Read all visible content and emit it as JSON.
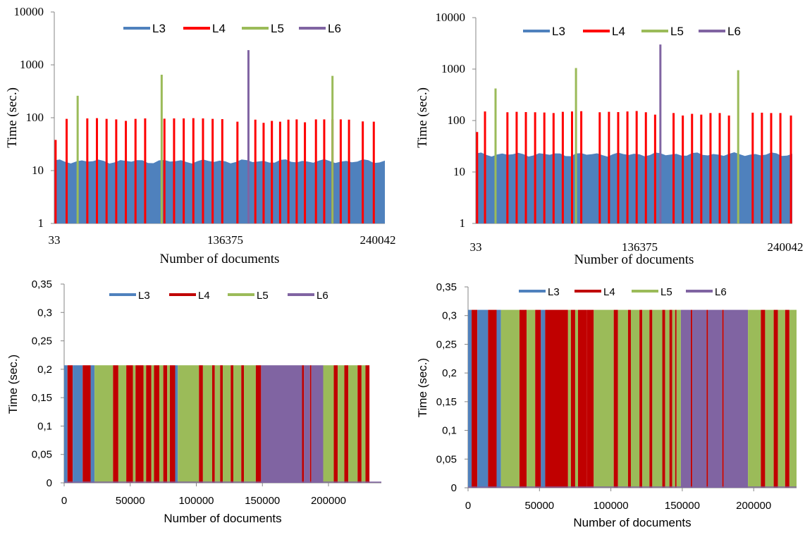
{
  "colors": {
    "L3": "#4f81bd",
    "L4_top": "#ff0000",
    "L4_bottom": "#c00000",
    "L5": "#9bbb59",
    "L6": "#8064a2"
  },
  "chart_data": [
    {
      "type": "bar",
      "panel": "top-left",
      "ylabel": "Time (sec.)",
      "xlabel": "Number of documents",
      "yscale": "log",
      "ylim": [
        1,
        10000
      ],
      "yticks": [
        "1",
        "10",
        "100",
        "1000",
        "10000"
      ],
      "xticks": [
        "33",
        "136375",
        "240042"
      ],
      "legend": [
        "L3",
        "L4",
        "L5",
        "L6"
      ],
      "legend_position": "top",
      "x_range": [
        33,
        240042
      ],
      "series": [
        {
          "name": "L3",
          "baseline": 15,
          "note_values": [
            15,
            14,
            15,
            16,
            15,
            17,
            15,
            14,
            15,
            16,
            15,
            14,
            13,
            15,
            16,
            15,
            14,
            15,
            14,
            13
          ]
        },
        {
          "name": "L4",
          "x": [
            1000,
            9000,
            24000,
            31000,
            38000,
            45000,
            52000,
            59000,
            66000,
            80000,
            87000,
            94000,
            101000,
            108000,
            115000,
            122000,
            133000,
            146000,
            152000,
            158000,
            164000,
            170000,
            176000,
            182000,
            190000,
            196000,
            202000,
            208000,
            214000,
            224000,
            232000
          ],
          "values": [
            38,
            95,
            97,
            98,
            95,
            93,
            87,
            95,
            97,
            96,
            97,
            97,
            98,
            97,
            95,
            94,
            84,
            92,
            80,
            87,
            84,
            92,
            93,
            82,
            93,
            93,
            93,
            93,
            92,
            85,
            84
          ]
        },
        {
          "name": "L5",
          "x": [
            17000,
            78000,
            202000
          ],
          "values": [
            260,
            650,
            620
          ]
        },
        {
          "name": "L6",
          "x": [
            141000
          ],
          "values": [
            1900
          ]
        }
      ]
    },
    {
      "type": "bar",
      "panel": "top-right",
      "ylabel": "Time (sec.)",
      "xlabel": "Number of documents",
      "yscale": "log",
      "ylim": [
        1,
        10000
      ],
      "yticks": [
        "1",
        "10",
        "100",
        "1000",
        "10000"
      ],
      "xticks": [
        "33",
        "136375",
        "240042"
      ],
      "legend": [
        "L3",
        "L4",
        "L5",
        "L6"
      ],
      "legend_position": "top",
      "x_range": [
        33,
        240042
      ],
      "series": [
        {
          "name": "L3",
          "baseline": 22
        },
        {
          "name": "L4",
          "x": [
            1000,
            7000,
            24000,
            31000,
            38000,
            45000,
            52000,
            59000,
            66000,
            73000,
            80000,
            94000,
            101000,
            108000,
            115000,
            122000,
            129000,
            136000,
            150000,
            157000,
            164000,
            171000,
            178000,
            185000,
            192000,
            210000,
            217000,
            224000,
            231000,
            239000
          ],
          "values": [
            60,
            150,
            145,
            148,
            146,
            145,
            143,
            140,
            148,
            150,
            152,
            145,
            148,
            146,
            150,
            153,
            145,
            130,
            140,
            125,
            135,
            130,
            140,
            140,
            125,
            142,
            142,
            140,
            140,
            125
          ]
        },
        {
          "name": "L5",
          "x": [
            15000,
            76000,
            199000
          ],
          "values": [
            420,
            1050,
            950
          ]
        },
        {
          "name": "L6",
          "x": [
            140000
          ],
          "values": [
            3000
          ]
        }
      ]
    },
    {
      "type": "area",
      "panel": "bottom-left",
      "ylabel": "Time (sec.)",
      "xlabel": "Number of documents",
      "ylim": [
        0,
        0.35
      ],
      "yticks": [
        "0",
        "0,05",
        "0,1",
        "0,15",
        "0,2",
        "0,25",
        "0,3",
        "0,35"
      ],
      "xticks": [
        "0",
        "50000",
        "100000",
        "150000",
        "200000"
      ],
      "xlim": [
        0,
        240000
      ],
      "legend": [
        "L3",
        "L4",
        "L5",
        "L6"
      ],
      "legend_position": "top",
      "level": 0.207,
      "segments": [
        [
          0,
          2500,
          "L3"
        ],
        [
          2500,
          6500,
          "L4"
        ],
        [
          6500,
          14000,
          "L3"
        ],
        [
          14000,
          20000,
          "L4"
        ],
        [
          20000,
          23000,
          "L3"
        ],
        [
          23000,
          37000,
          "L5"
        ],
        [
          37000,
          41000,
          "L4"
        ],
        [
          41000,
          47000,
          "L5"
        ],
        [
          47000,
          52000,
          "L4"
        ],
        [
          52000,
          54000,
          "L5"
        ],
        [
          54000,
          60000,
          "L4"
        ],
        [
          60000,
          62000,
          "L5"
        ],
        [
          62000,
          66000,
          "L4"
        ],
        [
          66000,
          68000,
          "L5"
        ],
        [
          68000,
          72000,
          "L4"
        ],
        [
          72000,
          75000,
          "L5"
        ],
        [
          75000,
          78000,
          "L4"
        ],
        [
          78000,
          80000,
          "L5"
        ],
        [
          80000,
          84000,
          "L4"
        ],
        [
          84000,
          86000,
          "L3"
        ],
        [
          86000,
          102000,
          "L5"
        ],
        [
          102000,
          105000,
          "L4"
        ],
        [
          105000,
          112000,
          "L5"
        ],
        [
          112000,
          114000,
          "L4"
        ],
        [
          114000,
          118000,
          "L5"
        ],
        [
          118000,
          120000,
          "L4"
        ],
        [
          120000,
          126000,
          "L5"
        ],
        [
          126000,
          128000,
          "L4"
        ],
        [
          128000,
          134000,
          "L5"
        ],
        [
          134000,
          136000,
          "L4"
        ],
        [
          136000,
          145000,
          "L5"
        ],
        [
          145000,
          149000,
          "L4"
        ],
        [
          149000,
          180000,
          "L6"
        ],
        [
          180000,
          181500,
          "L4"
        ],
        [
          181500,
          186000,
          "L6"
        ],
        [
          186000,
          187000,
          "L4"
        ],
        [
          187000,
          196000,
          "L6"
        ],
        [
          196000,
          204000,
          "L5"
        ],
        [
          204000,
          207000,
          "L4"
        ],
        [
          207000,
          212000,
          "L5"
        ],
        [
          212000,
          215000,
          "L4"
        ],
        [
          215000,
          222000,
          "L5"
        ],
        [
          222000,
          225000,
          "L4"
        ],
        [
          225000,
          228000,
          "L5"
        ],
        [
          228000,
          231000,
          "L4"
        ]
      ]
    },
    {
      "type": "area",
      "panel": "bottom-right",
      "ylabel": "Time (sec.)",
      "xlabel": "Number of documents",
      "ylim": [
        0,
        0.35
      ],
      "yticks": [
        "0",
        "0,05",
        "0,1",
        "0,15",
        "0,2",
        "0,25",
        "0,3",
        "0,35"
      ],
      "xticks": [
        "0",
        "50000",
        "100000",
        "150000",
        "200000"
      ],
      "xlim": [
        0,
        230000
      ],
      "legend": [
        "L3",
        "L4",
        "L5",
        "L6"
      ],
      "legend_position": "top",
      "level": 0.31,
      "segments": [
        [
          0,
          2500,
          "L3"
        ],
        [
          2500,
          6500,
          "L4"
        ],
        [
          6500,
          14000,
          "L3"
        ],
        [
          14000,
          20000,
          "L4"
        ],
        [
          20000,
          23000,
          "L3"
        ],
        [
          23000,
          36000,
          "L5"
        ],
        [
          36000,
          41000,
          "L4"
        ],
        [
          41000,
          47000,
          "L5"
        ],
        [
          47000,
          51000,
          "L4"
        ],
        [
          51000,
          54000,
          "L3"
        ],
        [
          54000,
          70000,
          "L4"
        ],
        [
          70000,
          72000,
          "L5"
        ],
        [
          72000,
          75000,
          "L4"
        ],
        [
          75000,
          77000,
          "L5"
        ],
        [
          77000,
          83000,
          "L4"
        ],
        [
          83000,
          88000,
          "L4"
        ],
        [
          88000,
          102000,
          "L5"
        ],
        [
          102000,
          105000,
          "L4"
        ],
        [
          105000,
          112000,
          "L5"
        ],
        [
          112000,
          114000,
          "L4"
        ],
        [
          114000,
          120000,
          "L5"
        ],
        [
          120000,
          122000,
          "L4"
        ],
        [
          122000,
          127000,
          "L5"
        ],
        [
          127000,
          129000,
          "L4"
        ],
        [
          129000,
          136000,
          "L5"
        ],
        [
          136000,
          138000,
          "L4"
        ],
        [
          138000,
          141000,
          "L5"
        ],
        [
          141000,
          143000,
          "L4"
        ],
        [
          143000,
          145000,
          "L5"
        ],
        [
          145000,
          146000,
          "L4"
        ],
        [
          146000,
          149000,
          "L5"
        ],
        [
          149000,
          156000,
          "L6"
        ],
        [
          156000,
          157000,
          "L4"
        ],
        [
          157000,
          167000,
          "L6"
        ],
        [
          167000,
          168000,
          "L4"
        ],
        [
          168000,
          178000,
          "L6"
        ],
        [
          178000,
          179000,
          "L4"
        ],
        [
          179000,
          196000,
          "L6"
        ],
        [
          196000,
          205000,
          "L5"
        ],
        [
          205000,
          208000,
          "L4"
        ],
        [
          208000,
          214000,
          "L5"
        ],
        [
          214000,
          217000,
          "L4"
        ],
        [
          217000,
          222000,
          "L5"
        ],
        [
          222000,
          225000,
          "L4"
        ],
        [
          225000,
          230000,
          "L5"
        ]
      ]
    }
  ]
}
